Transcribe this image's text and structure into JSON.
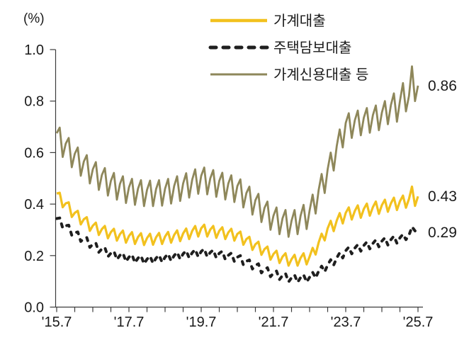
{
  "chart_data": {
    "type": "line",
    "title": "",
    "unit_label": "(%)",
    "ylim": [
      0.0,
      1.0
    ],
    "y_ticks": [
      0.0,
      0.2,
      0.4,
      0.6,
      0.8,
      1.0
    ],
    "y_tick_labels": [
      "0.0",
      "0.2",
      "0.4",
      "0.6",
      "0.8",
      "1.0"
    ],
    "x_tick_labels": [
      "'15.7",
      "'17.7",
      "'19.7",
      "'21.7",
      "'23.7",
      "'25.7"
    ],
    "x_minor_ticks_between_labels": 4,
    "grid": false,
    "legend_position": "top-center",
    "axis_color": "#3c3c3c",
    "text_color": "#1a1a1a",
    "series": [
      {
        "name": "가계대출",
        "color": "#F2C11E",
        "line_style": "solid",
        "line_width": 3.2,
        "end_label": "0.43",
        "values": [
          0.441,
          0.444,
          0.388,
          0.403,
          0.407,
          0.35,
          0.366,
          0.374,
          0.321,
          0.341,
          0.349,
          0.296,
          0.316,
          0.328,
          0.28,
          0.303,
          0.315,
          0.267,
          0.291,
          0.304,
          0.258,
          0.283,
          0.297,
          0.25,
          0.276,
          0.291,
          0.245,
          0.272,
          0.287,
          0.241,
          0.268,
          0.285,
          0.242,
          0.271,
          0.288,
          0.245,
          0.274,
          0.292,
          0.25,
          0.28,
          0.298,
          0.256,
          0.286,
          0.305,
          0.264,
          0.296,
          0.315,
          0.274,
          0.306,
          0.32,
          0.274,
          0.301,
          0.315,
          0.269,
          0.296,
          0.31,
          0.264,
          0.29,
          0.304,
          0.258,
          0.284,
          0.293,
          0.242,
          0.264,
          0.273,
          0.222,
          0.244,
          0.254,
          0.203,
          0.225,
          0.235,
          0.184,
          0.206,
          0.219,
          0.171,
          0.196,
          0.209,
          0.161,
          0.186,
          0.203,
          0.161,
          0.191,
          0.209,
          0.166,
          0.196,
          0.23,
          0.204,
          0.251,
          0.285,
          0.259,
          0.306,
          0.335,
          0.295,
          0.336,
          0.365,
          0.325,
          0.366,
          0.387,
          0.34,
          0.373,
          0.395,
          0.347,
          0.381,
          0.402,
          0.355,
          0.388,
          0.41,
          0.362,
          0.396,
          0.417,
          0.37,
          0.403,
          0.425,
          0.377,
          0.411,
          0.433,
          0.386,
          0.42,
          0.468,
          0.393,
          0.43
        ]
      },
      {
        "name": "주택담보대출",
        "color": "#1F1F1F",
        "line_style": "dashed",
        "line_width": 4,
        "end_label": "0.29",
        "values": [
          0.344,
          0.346,
          0.307,
          0.316,
          0.318,
          0.279,
          0.289,
          0.292,
          0.255,
          0.266,
          0.27,
          0.232,
          0.244,
          0.249,
          0.213,
          0.226,
          0.232,
          0.196,
          0.209,
          0.217,
          0.185,
          0.201,
          0.21,
          0.177,
          0.194,
          0.204,
          0.172,
          0.19,
          0.2,
          0.168,
          0.186,
          0.198,
          0.17,
          0.19,
          0.202,
          0.174,
          0.194,
          0.207,
          0.179,
          0.2,
          0.213,
          0.186,
          0.207,
          0.219,
          0.191,
          0.211,
          0.224,
          0.195,
          0.216,
          0.226,
          0.195,
          0.212,
          0.222,
          0.191,
          0.209,
          0.217,
          0.185,
          0.201,
          0.21,
          0.177,
          0.194,
          0.2,
          0.164,
          0.178,
          0.183,
          0.148,
          0.162,
          0.168,
          0.133,
          0.147,
          0.153,
          0.118,
          0.132,
          0.14,
          0.107,
          0.123,
          0.131,
          0.098,
          0.114,
          0.125,
          0.096,
          0.115,
          0.126,
          0.097,
          0.116,
          0.135,
          0.113,
          0.14,
          0.159,
          0.137,
          0.164,
          0.184,
          0.163,
          0.191,
          0.211,
          0.191,
          0.219,
          0.233,
          0.207,
          0.229,
          0.243,
          0.217,
          0.239,
          0.253,
          0.226,
          0.247,
          0.261,
          0.234,
          0.256,
          0.269,
          0.241,
          0.262,
          0.276,
          0.248,
          0.269,
          0.283,
          0.262,
          0.279,
          0.312,
          0.296,
          0.29
        ]
      },
      {
        "name": "가계신용대출 등",
        "color": "#8E875A",
        "line_style": "solid",
        "line_width": 2.8,
        "end_label": "0.86",
        "values": [
          0.675,
          0.697,
          0.583,
          0.635,
          0.657,
          0.543,
          0.595,
          0.62,
          0.51,
          0.565,
          0.59,
          0.48,
          0.535,
          0.563,
          0.455,
          0.513,
          0.54,
          0.433,
          0.49,
          0.521,
          0.417,
          0.478,
          0.508,
          0.404,
          0.465,
          0.498,
          0.397,
          0.46,
          0.493,
          0.392,
          0.455,
          0.491,
          0.392,
          0.458,
          0.493,
          0.394,
          0.46,
          0.498,
          0.402,
          0.47,
          0.508,
          0.412,
          0.48,
          0.52,
          0.425,
          0.495,
          0.535,
          0.44,
          0.51,
          0.542,
          0.438,
          0.5,
          0.532,
          0.428,
          0.49,
          0.522,
          0.418,
          0.48,
          0.512,
          0.408,
          0.47,
          0.496,
          0.387,
          0.443,
          0.468,
          0.359,
          0.415,
          0.44,
          0.33,
          0.385,
          0.41,
          0.3,
          0.355,
          0.387,
          0.283,
          0.345,
          0.377,
          0.273,
          0.335,
          0.377,
          0.283,
          0.355,
          0.397,
          0.303,
          0.375,
          0.437,
          0.363,
          0.455,
          0.517,
          0.443,
          0.535,
          0.6,
          0.53,
          0.625,
          0.69,
          0.62,
          0.715,
          0.753,
          0.657,
          0.725,
          0.763,
          0.667,
          0.735,
          0.773,
          0.677,
          0.745,
          0.783,
          0.687,
          0.755,
          0.8,
          0.71,
          0.785,
          0.83,
          0.72,
          0.8,
          0.87,
          0.76,
          0.82,
          0.935,
          0.8,
          0.86
        ]
      }
    ]
  }
}
